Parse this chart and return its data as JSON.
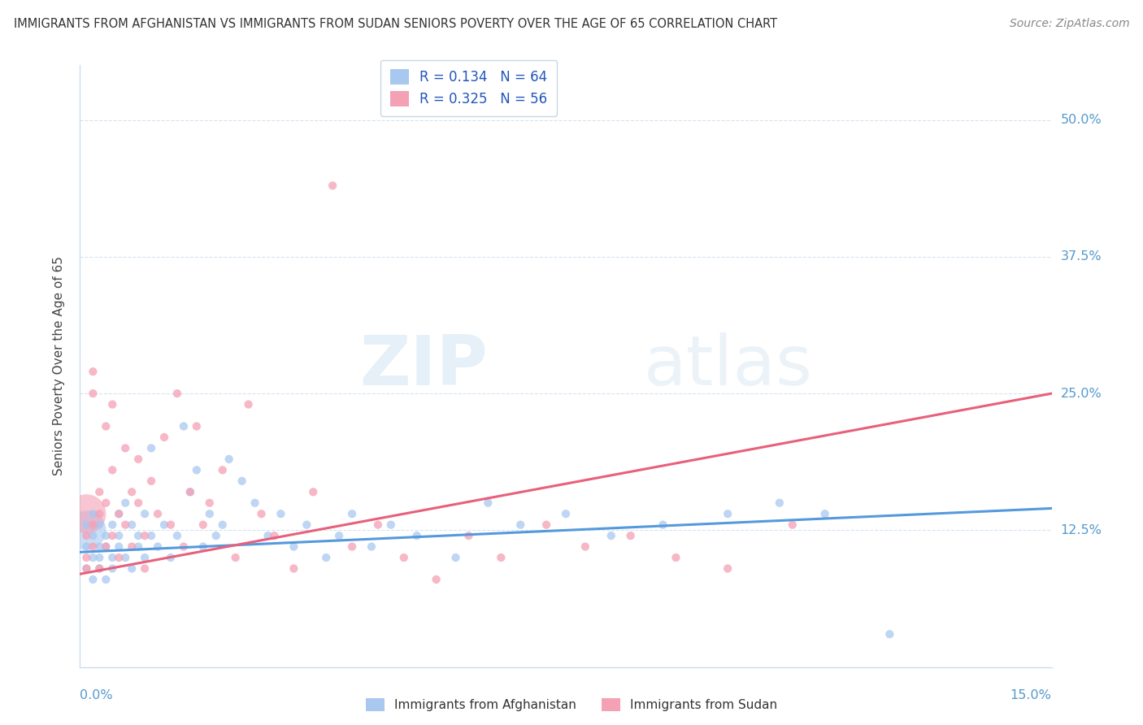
{
  "title": "IMMIGRANTS FROM AFGHANISTAN VS IMMIGRANTS FROM SUDAN SENIORS POVERTY OVER THE AGE OF 65 CORRELATION CHART",
  "source": "Source: ZipAtlas.com",
  "ylabel": "Seniors Poverty Over the Age of 65",
  "xlim": [
    0.0,
    0.15
  ],
  "ylim": [
    0.0,
    0.55
  ],
  "xtick_labels": [
    "0.0%",
    "15.0%"
  ],
  "ytick_labels": [
    "12.5%",
    "25.0%",
    "37.5%",
    "50.0%"
  ],
  "ytick_values": [
    0.125,
    0.25,
    0.375,
    0.5
  ],
  "afghanistan_R": 0.134,
  "afghanistan_N": 64,
  "sudan_R": 0.325,
  "sudan_N": 56,
  "afghanistan_color": "#a8c8f0",
  "sudan_color": "#f4a0b5",
  "afghanistan_line_color": "#5599dd",
  "sudan_line_color": "#e8607a",
  "background_color": "#ffffff",
  "grid_color": "#ccddee",
  "watermark_zip": "ZIP",
  "watermark_atlas": "atlas",
  "legend_label_afghanistan": "Immigrants from Afghanistan",
  "legend_label_sudan": "Immigrants from Sudan",
  "afghanistan_scatter_x": [
    0.001,
    0.001,
    0.001,
    0.002,
    0.002,
    0.002,
    0.002,
    0.003,
    0.003,
    0.003,
    0.003,
    0.004,
    0.004,
    0.004,
    0.005,
    0.005,
    0.005,
    0.006,
    0.006,
    0.006,
    0.007,
    0.007,
    0.008,
    0.008,
    0.009,
    0.009,
    0.01,
    0.01,
    0.011,
    0.011,
    0.012,
    0.013,
    0.014,
    0.015,
    0.016,
    0.017,
    0.018,
    0.019,
    0.02,
    0.021,
    0.022,
    0.023,
    0.025,
    0.027,
    0.029,
    0.031,
    0.033,
    0.035,
    0.038,
    0.04,
    0.042,
    0.045,
    0.048,
    0.052,
    0.058,
    0.063,
    0.068,
    0.075,
    0.082,
    0.09,
    0.1,
    0.108,
    0.115,
    0.125
  ],
  "afghanistan_scatter_y": [
    0.09,
    0.11,
    0.13,
    0.1,
    0.12,
    0.08,
    0.14,
    0.11,
    0.09,
    0.13,
    0.1,
    0.12,
    0.08,
    0.11,
    0.1,
    0.13,
    0.09,
    0.12,
    0.11,
    0.14,
    0.1,
    0.15,
    0.09,
    0.13,
    0.11,
    0.12,
    0.1,
    0.14,
    0.12,
    0.2,
    0.11,
    0.13,
    0.1,
    0.12,
    0.22,
    0.16,
    0.18,
    0.11,
    0.14,
    0.12,
    0.13,
    0.19,
    0.17,
    0.15,
    0.12,
    0.14,
    0.11,
    0.13,
    0.1,
    0.12,
    0.14,
    0.11,
    0.13,
    0.12,
    0.1,
    0.15,
    0.13,
    0.14,
    0.12,
    0.13,
    0.14,
    0.15,
    0.14,
    0.03
  ],
  "sudan_scatter_x": [
    0.001,
    0.001,
    0.001,
    0.002,
    0.002,
    0.002,
    0.002,
    0.003,
    0.003,
    0.003,
    0.004,
    0.004,
    0.004,
    0.005,
    0.005,
    0.005,
    0.006,
    0.006,
    0.007,
    0.007,
    0.008,
    0.008,
    0.009,
    0.009,
    0.01,
    0.01,
    0.011,
    0.012,
    0.013,
    0.014,
    0.015,
    0.016,
    0.017,
    0.018,
    0.019,
    0.02,
    0.022,
    0.024,
    0.026,
    0.028,
    0.03,
    0.033,
    0.036,
    0.039,
    0.042,
    0.046,
    0.05,
    0.055,
    0.06,
    0.065,
    0.072,
    0.078,
    0.085,
    0.092,
    0.1,
    0.11
  ],
  "sudan_scatter_y": [
    0.1,
    0.12,
    0.09,
    0.25,
    0.27,
    0.13,
    0.11,
    0.14,
    0.16,
    0.09,
    0.22,
    0.11,
    0.15,
    0.18,
    0.12,
    0.24,
    0.1,
    0.14,
    0.2,
    0.13,
    0.16,
    0.11,
    0.15,
    0.19,
    0.12,
    0.09,
    0.17,
    0.14,
    0.21,
    0.13,
    0.25,
    0.11,
    0.16,
    0.22,
    0.13,
    0.15,
    0.18,
    0.1,
    0.24,
    0.14,
    0.12,
    0.09,
    0.16,
    0.44,
    0.11,
    0.13,
    0.1,
    0.08,
    0.12,
    0.1,
    0.13,
    0.11,
    0.12,
    0.1,
    0.09,
    0.13
  ],
  "sudan_large_x": [
    0.001
  ],
  "sudan_large_y": [
    0.145
  ],
  "afg_large_x": [
    0.001
  ],
  "afg_large_y": [
    0.125
  ]
}
